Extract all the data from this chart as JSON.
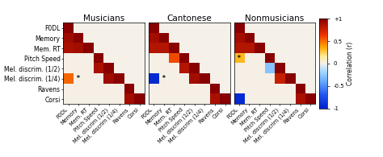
{
  "titles": [
    "Musicians",
    "Cantonese",
    "Nonmusicians"
  ],
  "ylabels": [
    "F0DL",
    "Memory",
    "Mem. RT",
    "Pitch Speed",
    "Mel. discrim. (1/2)",
    "Mel. discrim. (1/4)",
    "Ravens",
    "Corsi"
  ],
  "xlabels": [
    "F0DL",
    "Memory",
    "Mem. RT",
    "Pitch Speed",
    "Mel. discrim (1/2)",
    "Mel. discrim (1/4)",
    "Ravens",
    "Corsi"
  ],
  "matrices": [
    [
      [
        1.0,
        null,
        null,
        null,
        null,
        null,
        null,
        null
      ],
      [
        0.92,
        1.0,
        null,
        null,
        null,
        null,
        null,
        null
      ],
      [
        0.88,
        0.9,
        1.0,
        null,
        null,
        null,
        null,
        null
      ],
      [
        0.0,
        0.0,
        0.0,
        1.0,
        null,
        null,
        null,
        null
      ],
      [
        0.0,
        0.0,
        0.0,
        0.88,
        1.0,
        null,
        null,
        null
      ],
      [
        0.52,
        0.0,
        0.0,
        0.0,
        0.92,
        1.0,
        null,
        null
      ],
      [
        0.0,
        0.0,
        0.0,
        0.0,
        0.0,
        0.0,
        1.0,
        null
      ],
      [
        0.0,
        0.0,
        0.0,
        0.0,
        0.0,
        0.0,
        0.9,
        1.0
      ]
    ],
    [
      [
        1.0,
        null,
        null,
        null,
        null,
        null,
        null,
        null
      ],
      [
        0.9,
        1.0,
        null,
        null,
        null,
        null,
        null,
        null
      ],
      [
        0.85,
        0.85,
        1.0,
        null,
        null,
        null,
        null,
        null
      ],
      [
        0.0,
        0.0,
        0.58,
        1.0,
        null,
        null,
        null,
        null
      ],
      [
        0.0,
        0.0,
        0.0,
        0.85,
        1.0,
        null,
        null,
        null
      ],
      [
        -0.95,
        0.0,
        0.0,
        0.0,
        0.9,
        1.0,
        null,
        null
      ],
      [
        0.0,
        0.0,
        0.0,
        0.0,
        0.0,
        0.0,
        1.0,
        null
      ],
      [
        0.0,
        0.0,
        0.0,
        0.0,
        0.0,
        0.0,
        0.88,
        1.0
      ]
    ],
    [
      [
        1.0,
        null,
        null,
        null,
        null,
        null,
        null,
        null
      ],
      [
        0.9,
        1.0,
        null,
        null,
        null,
        null,
        null,
        null
      ],
      [
        0.85,
        0.85,
        1.0,
        null,
        null,
        null,
        null,
        null
      ],
      [
        0.32,
        0.0,
        0.0,
        1.0,
        null,
        null,
        null,
        null
      ],
      [
        0.0,
        0.0,
        0.0,
        -0.28,
        1.0,
        null,
        null,
        null
      ],
      [
        0.0,
        0.0,
        0.0,
        0.0,
        0.78,
        1.0,
        null,
        null
      ],
      [
        0.0,
        0.0,
        0.0,
        0.0,
        0.0,
        0.0,
        1.0,
        null
      ],
      [
        -0.95,
        0.0,
        0.0,
        0.0,
        0.0,
        0.0,
        0.88,
        1.0
      ]
    ]
  ],
  "asterisks": [
    [
      [
        5,
        1
      ]
    ],
    [
      [
        5,
        1
      ]
    ],
    [
      [
        3,
        0
      ]
    ]
  ],
  "cmap_colors": [
    [
      0.0,
      "#0022cc"
    ],
    [
      0.15,
      "#2255ee"
    ],
    [
      0.3,
      "#66aaff"
    ],
    [
      0.42,
      "#aaddff"
    ],
    [
      0.5,
      "#f5f0e8"
    ],
    [
      0.58,
      "#ffee99"
    ],
    [
      0.68,
      "#ffaa00"
    ],
    [
      0.82,
      "#ee3300"
    ],
    [
      1.0,
      "#880000"
    ]
  ],
  "vmin": -1.0,
  "vmax": 1.0,
  "colorbar_label": "Correlation (r)",
  "colorbar_ticks": [
    -1,
    -0.5,
    0,
    0.5,
    1
  ],
  "colorbar_ticklabels": [
    "-1",
    "-0.5",
    "0",
    "0.5",
    "+1"
  ],
  "background_color": "#f5f0e8",
  "title_fontsize": 7.5,
  "label_fontsize": 5.5,
  "tick_fontsize": 4.8
}
